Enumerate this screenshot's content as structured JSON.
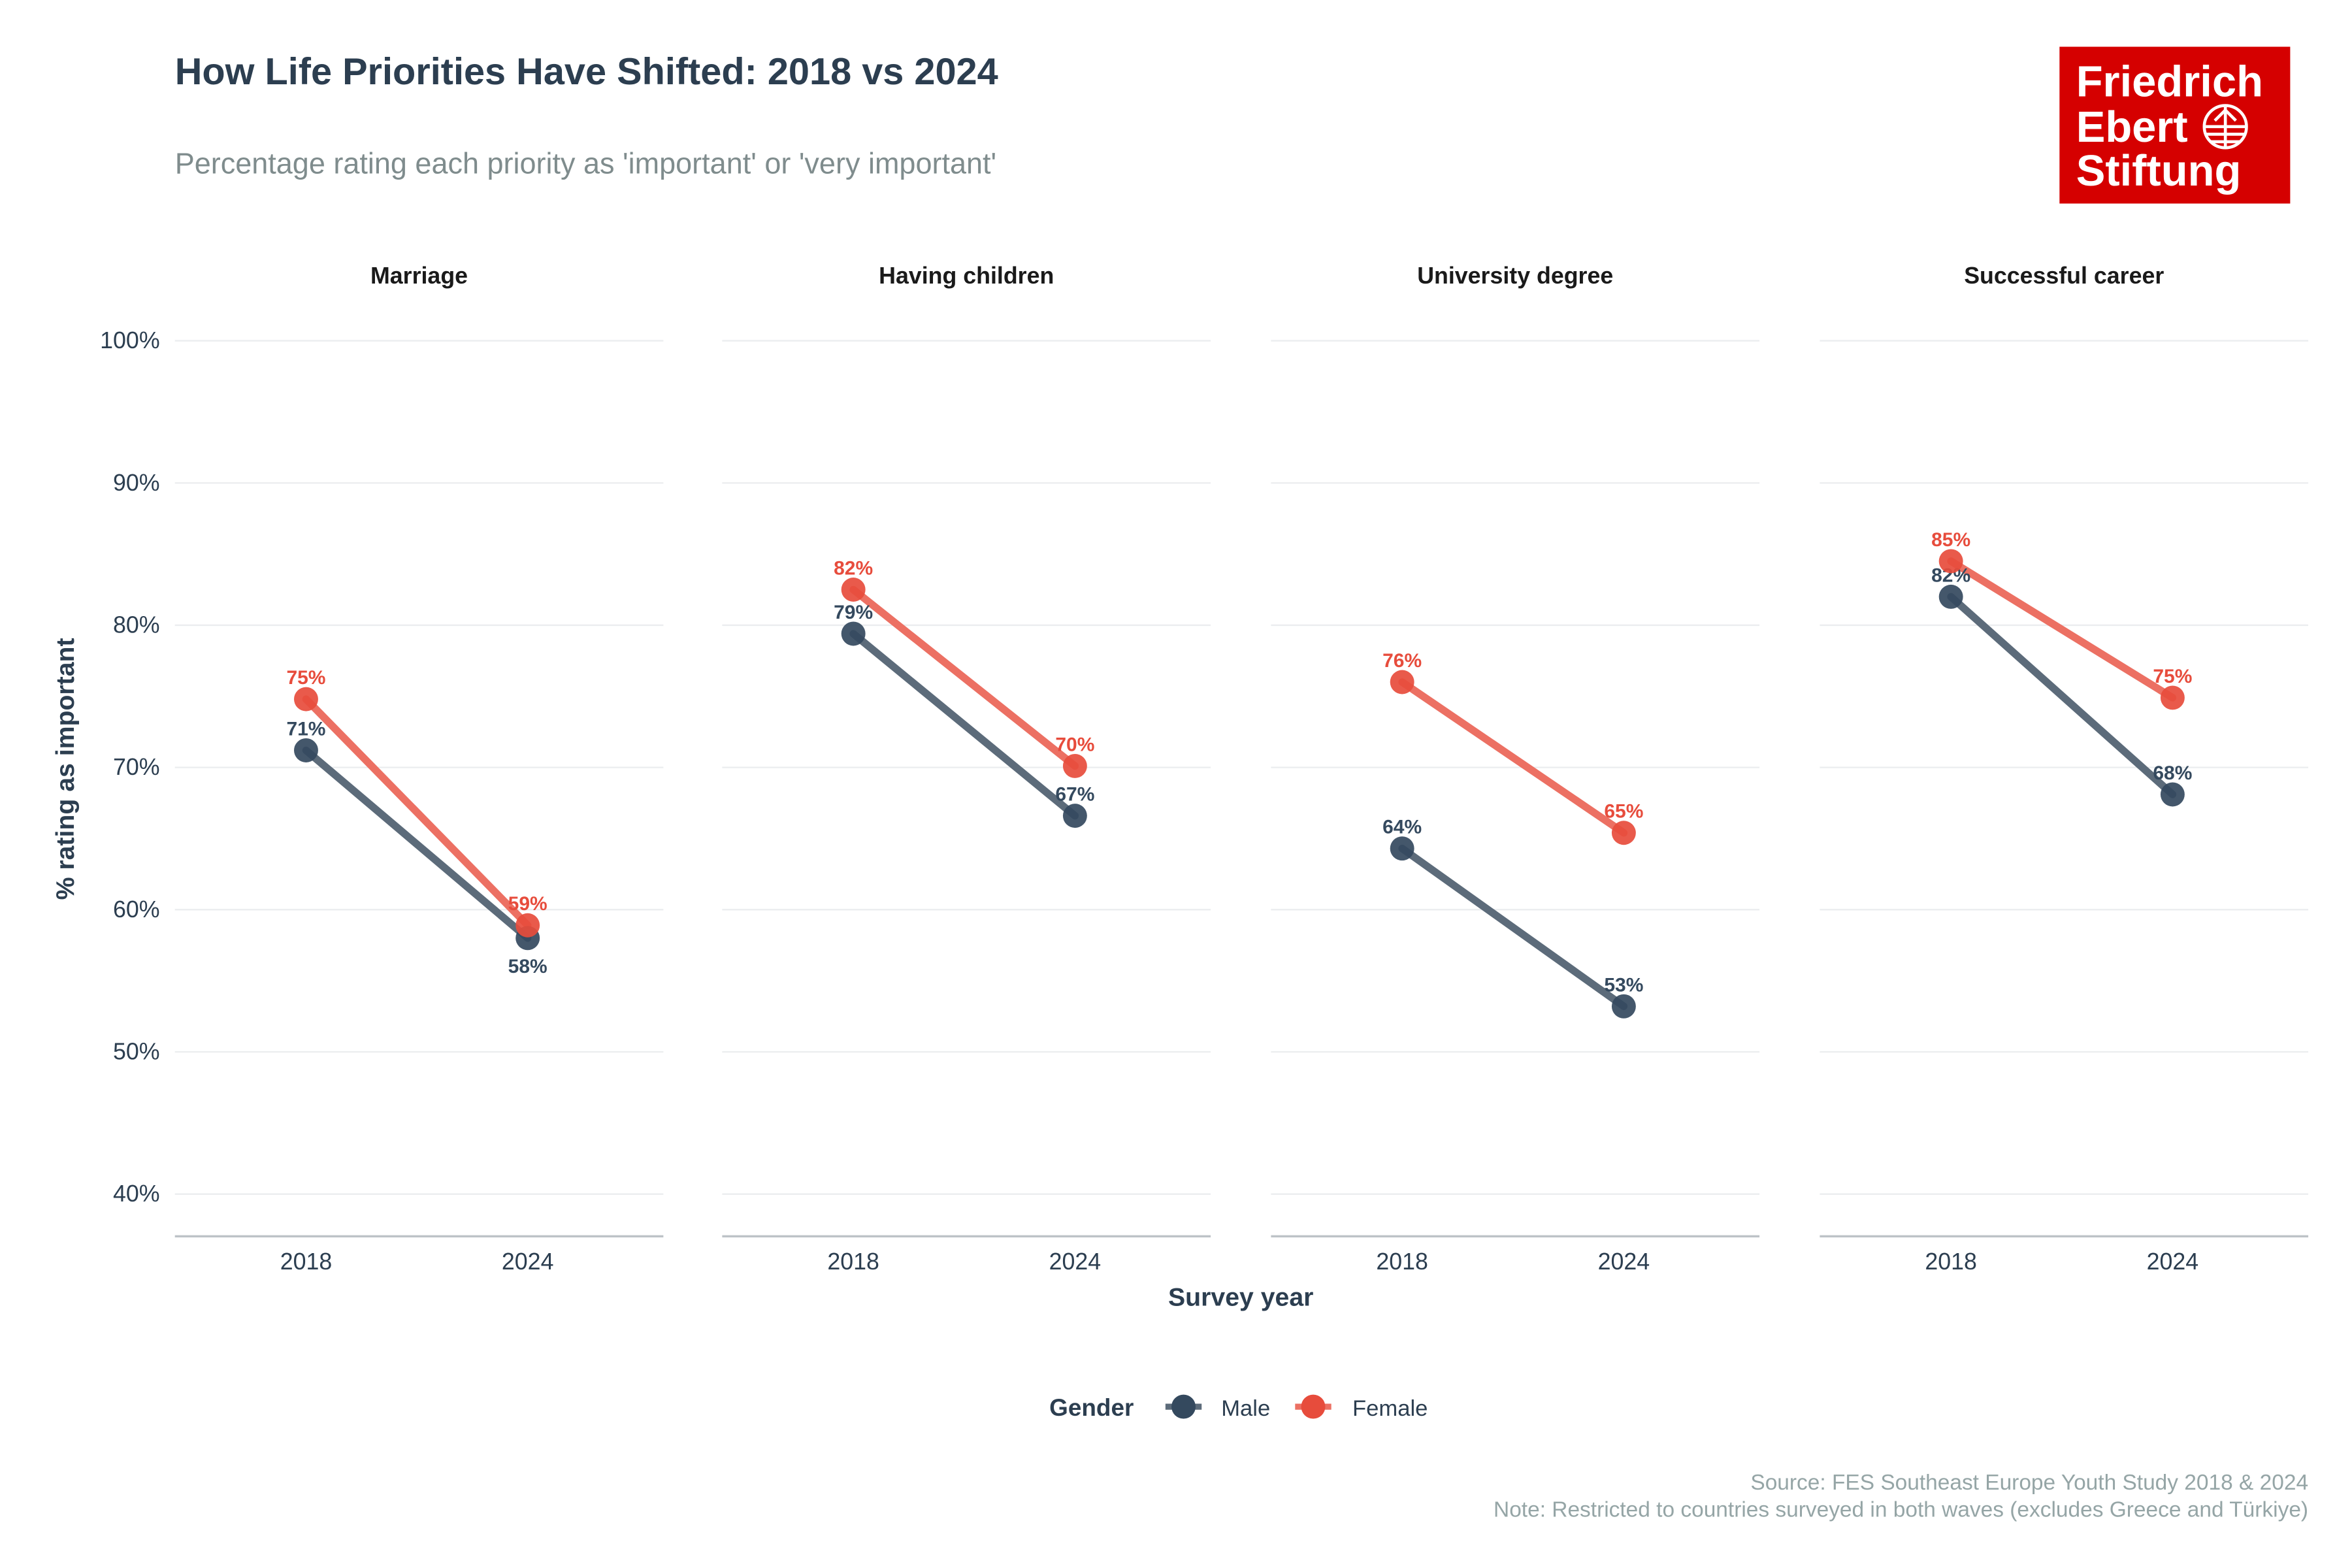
{
  "title": "How Life Priorities Have Shifted: 2018 vs 2024",
  "subtitle": "Percentage rating each priority as 'important' or 'very important'",
  "logo": {
    "lines": [
      "Friedrich",
      "Ebert",
      "Stiftung"
    ],
    "color": "#d50000"
  },
  "caption": {
    "source": "Source: FES Southeast Europe Youth Study 2018 & 2024",
    "note": "Note: Restricted to countries surveyed in both waves (excludes Greece and Türkiye)"
  },
  "legend": {
    "title": "Gender",
    "position": "bottom",
    "items": [
      "Male",
      "Female"
    ]
  },
  "chart_data": {
    "type": "line",
    "facets": [
      "Marriage",
      "Having children",
      "University degree",
      "Successful career"
    ],
    "x": [
      "2018",
      "2024"
    ],
    "xlabel": "Survey year",
    "ylabel": "% rating as important",
    "ylim": [
      37,
      100
    ],
    "yticks": [
      40,
      50,
      60,
      70,
      80,
      90,
      100
    ],
    "ytick_labels": [
      "40%",
      "50%",
      "60%",
      "70%",
      "80%",
      "90%",
      "100%"
    ],
    "grid": true,
    "series": [
      {
        "name": "Male",
        "color": "#34495e",
        "values": [
          [
            71.2,
            58.0
          ],
          [
            79.4,
            66.6
          ],
          [
            64.3,
            53.2
          ],
          [
            82.0,
            68.1
          ]
        ],
        "labels": [
          [
            "71%",
            "58%"
          ],
          [
            "79%",
            "67%"
          ],
          [
            "64%",
            "53%"
          ],
          [
            "82%",
            "68%"
          ]
        ]
      },
      {
        "name": "Female",
        "color": "#e74c3c",
        "values": [
          [
            74.8,
            58.9
          ],
          [
            82.5,
            70.1
          ],
          [
            76.0,
            65.4
          ],
          [
            84.5,
            74.9
          ]
        ],
        "labels": [
          [
            "75%",
            "59%"
          ],
          [
            "82%",
            "70%"
          ],
          [
            "76%",
            "65%"
          ],
          [
            "85%",
            "75%"
          ]
        ]
      }
    ]
  }
}
